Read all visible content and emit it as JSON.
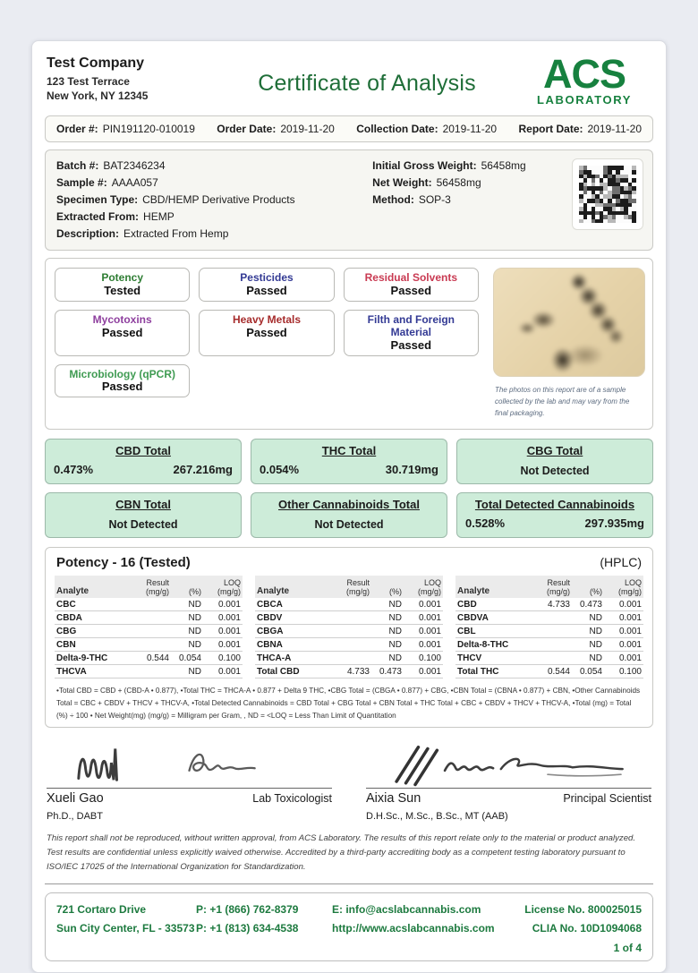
{
  "header": {
    "company_name": "Test Company",
    "company_address1": "123 Test Terrace",
    "company_address2": "New York, NY 12345",
    "title": "Certificate of Analysis",
    "logo_text": "ACS",
    "logo_subtext": "LABORATORY",
    "brand_green": "#17813f"
  },
  "order_bar": {
    "order_label": "Order #:",
    "order_value": "PIN191120-010019",
    "order_date_label": "Order Date:",
    "order_date_value": "2019-11-20",
    "collection_date_label": "Collection Date:",
    "collection_date_value": "2019-11-20",
    "report_date_label": "Report Date:",
    "report_date_value": "2019-11-20"
  },
  "sample_info": {
    "batch_label": "Batch #:",
    "batch_value": "BAT2346234",
    "sample_label": "Sample #:",
    "sample_value": "AAAA057",
    "specimen_label": "Specimen Type:",
    "specimen_value": "CBD/HEMP Derivative Products",
    "extracted_label": "Extracted From:",
    "extracted_value": "HEMP",
    "description_label": "Description:",
    "description_value": "Extracted From Hemp",
    "gross_label": "Initial Gross Weight:",
    "gross_value": "56458mg",
    "net_label": "Net Weight:",
    "net_value": "56458mg",
    "method_label": "Method:",
    "method_value": "SOP-3"
  },
  "tests": {
    "chips": [
      {
        "name": "Potency",
        "status": "Tested",
        "color": "#2e7d33"
      },
      {
        "name": "Pesticides",
        "status": "Passed",
        "color": "#333a94"
      },
      {
        "name": "Residual Solvents",
        "status": "Passed",
        "color": "#c93a52"
      },
      {
        "name": "Mycotoxins",
        "status": "Passed",
        "color": "#8e3f9e"
      },
      {
        "name": "Heavy Metals",
        "status": "Passed",
        "color": "#a62c2c"
      },
      {
        "name": "Filth and Foreign Material",
        "status": "Passed",
        "color": "#333a94"
      },
      {
        "name": "Microbiology (qPCR)",
        "status": "Passed",
        "color": "#3f9b52"
      }
    ],
    "photo_caption": "The photos on this report are of a sample collected by the lab and may vary from the final packaging."
  },
  "totals": {
    "box_bg": "#cdecd9",
    "boxes": [
      {
        "title": "CBD Total",
        "percent": "0.473%",
        "mg": "267.216mg"
      },
      {
        "title": "THC Total",
        "percent": "0.054%",
        "mg": "30.719mg"
      },
      {
        "title": "CBG Total",
        "status": "Not Detected"
      },
      {
        "title": "CBN Total",
        "status": "Not Detected"
      },
      {
        "title": "Other Cannabinoids Total",
        "status": "Not Detected"
      },
      {
        "title": "Total Detected Cannabinoids",
        "percent": "0.528%",
        "mg": "297.935mg"
      }
    ]
  },
  "potency": {
    "section_title": "Potency - 16 (Tested)",
    "method": "(HPLC)",
    "headers": {
      "analyte": "Analyte",
      "result": "Result",
      "result_unit": "(mg/g)",
      "percent": "(%)",
      "loq": "LOQ",
      "loq_unit": "(mg/g)"
    },
    "columns": [
      [
        {
          "a": "CBC",
          "r": "",
          "p": "ND",
          "l": "0.001"
        },
        {
          "a": "CBDA",
          "r": "",
          "p": "ND",
          "l": "0.001"
        },
        {
          "a": "CBG",
          "r": "",
          "p": "ND",
          "l": "0.001"
        },
        {
          "a": "CBN",
          "r": "",
          "p": "ND",
          "l": "0.001"
        },
        {
          "a": "Delta-9-THC",
          "r": "0.544",
          "p": "0.054",
          "l": "0.100"
        },
        {
          "a": "THCVA",
          "r": "",
          "p": "ND",
          "l": "0.001"
        }
      ],
      [
        {
          "a": "CBCA",
          "r": "",
          "p": "ND",
          "l": "0.001"
        },
        {
          "a": "CBDV",
          "r": "",
          "p": "ND",
          "l": "0.001"
        },
        {
          "a": "CBGA",
          "r": "",
          "p": "ND",
          "l": "0.001"
        },
        {
          "a": "CBNA",
          "r": "",
          "p": "ND",
          "l": "0.001"
        },
        {
          "a": "THCA-A",
          "r": "",
          "p": "ND",
          "l": "0.100"
        },
        {
          "a": "Total CBD",
          "r": "4.733",
          "p": "0.473",
          "l": "0.001"
        }
      ],
      [
        {
          "a": "CBD",
          "r": "4.733",
          "p": "0.473",
          "l": "0.001"
        },
        {
          "a": "CBDVA",
          "r": "",
          "p": "ND",
          "l": "0.001"
        },
        {
          "a": "CBL",
          "r": "",
          "p": "ND",
          "l": "0.001"
        },
        {
          "a": "Delta-8-THC",
          "r": "",
          "p": "ND",
          "l": "0.001"
        },
        {
          "a": "THCV",
          "r": "",
          "p": "ND",
          "l": "0.001"
        },
        {
          "a": "Total THC",
          "r": "0.544",
          "p": "0.054",
          "l": "0.100"
        }
      ]
    ],
    "footnote": "•Total CBD = CBD + (CBD-A • 0.877), •Total THC = THCA-A • 0.877 + Delta 9 THC, •CBG Total = (CBGA • 0.877) + CBG, •CBN Total = (CBNA • 0.877) + CBN, •Other Cannabinoids Total = CBC + CBDV + THCV + THCV-A, •Total Detected Cannabinoids = CBD Total + CBG Total + CBN Total + THC Total + CBC + CBDV + THCV + THCV-A, •Total (mg) = Total (%) ÷ 100 • Net Weight(mg) (mg/g) = Milligram per Gram, , ND = <LOQ = Less Than Limit of Quantitation"
  },
  "signatures": [
    {
      "name": "Xueli Gao",
      "role": "Lab Toxicologist",
      "credentials": "Ph.D., DABT"
    },
    {
      "name": "Aixia Sun",
      "role": "Principal Scientist",
      "credentials": "D.H.Sc., M.Sc., B.Sc., MT (AAB)"
    }
  ],
  "disclaimer": "This report shall not be reproduced, without written approval, from ACS Laboratory. The results of this report relate only to the material or product analyzed. Test results are confidential unless explicitly waived otherwise. Accredited by a third-party accrediting body as a competent testing laboratory pursuant to ISO/IEC 17025 of the International Organization for Standardization.",
  "footer": {
    "text_color": "#1d7a3f",
    "address1": "721 Cortaro Drive",
    "address2": "Sun City Center, FL - 33573",
    "phone1": "P: +1 (866) 762-8379",
    "phone2": "P: +1 (813) 634-4538",
    "email": "E: info@acslabcannabis.com",
    "website": "http://www.acslabcannabis.com",
    "license": "License No. 800025015",
    "clia": "CLIA No. 10D1094068",
    "page": "1 of 4"
  }
}
